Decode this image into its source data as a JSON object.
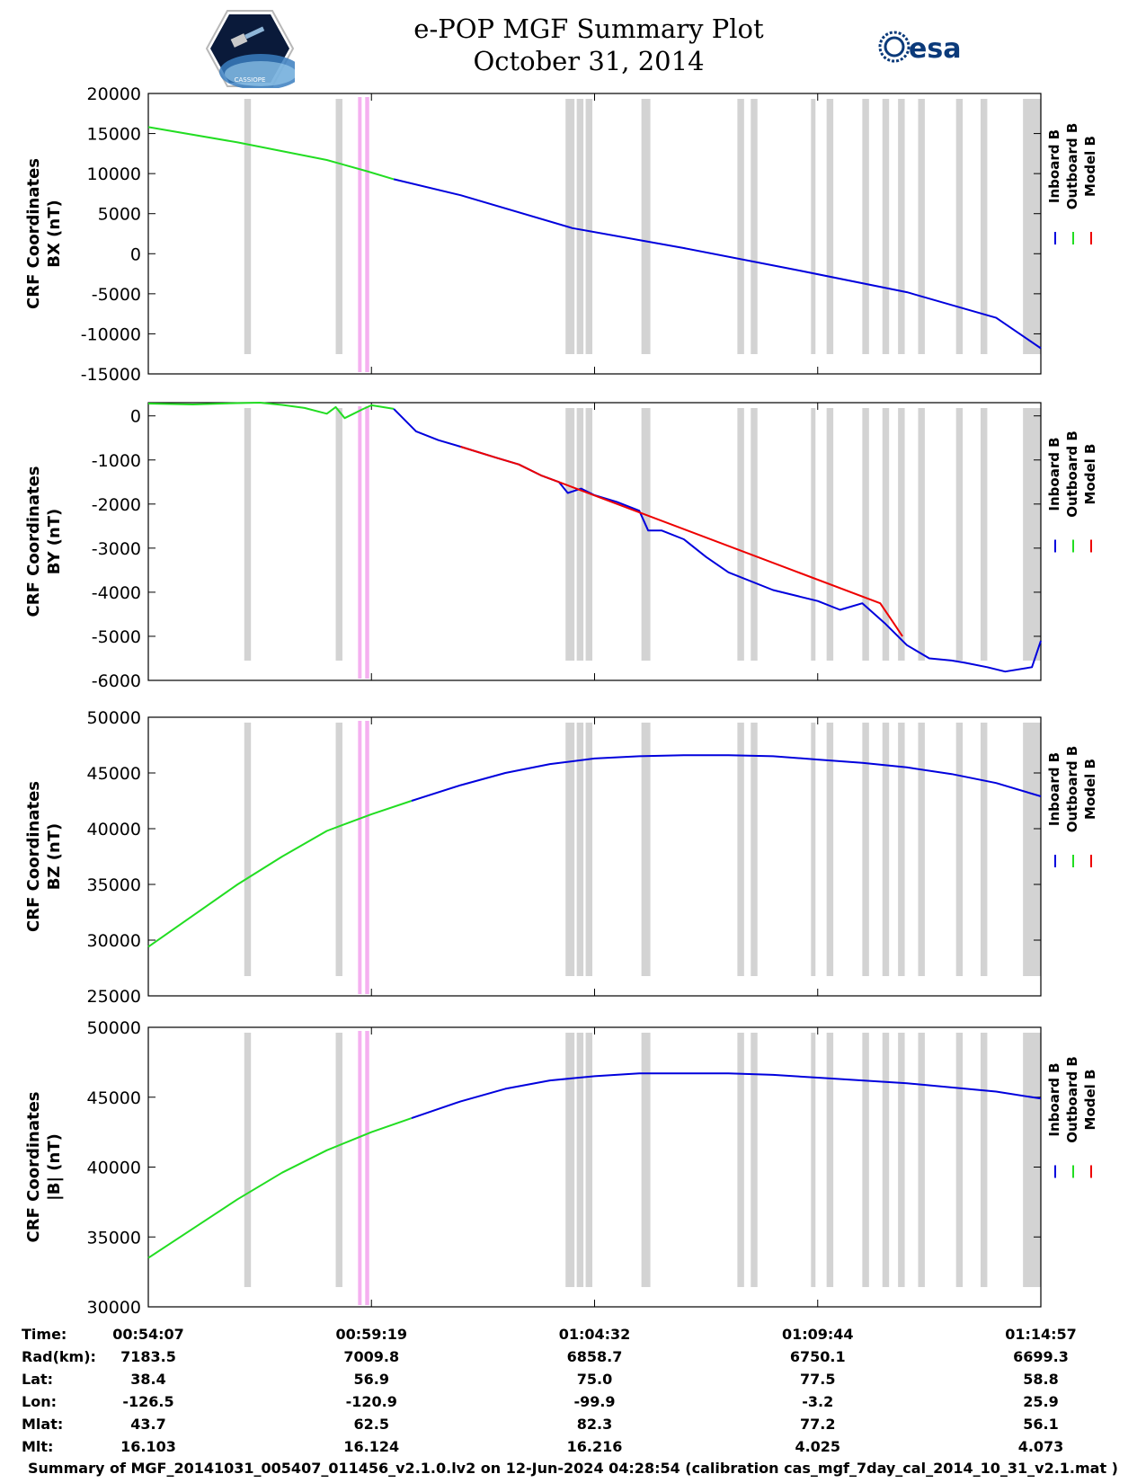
{
  "header": {
    "title": "e-POP MGF Summary Plot",
    "date": "October 31, 2014",
    "logo_left_text": "CASSIOPE",
    "logo_right_text": "esa"
  },
  "colors": {
    "inboard": "#0000dd",
    "outboard": "#22dd22",
    "model": "#ee0000",
    "gap": "#d3d3d3",
    "event": "#f5b0f0"
  },
  "legend": [
    "Inboard B",
    "Outboard B",
    "Model B"
  ],
  "chart_data": [
    {
      "type": "line",
      "ylabel": [
        "CRF Coordinates",
        "BX (nT)"
      ],
      "ylim": [
        -15000,
        20000
      ],
      "yticks": [
        "20000",
        "15000",
        "10000",
        "5000",
        "0",
        "-5000",
        "-10000",
        "-15000"
      ],
      "series": [
        {
          "name": "Outboard B",
          "x": [
            0,
            2.0,
            4.0,
            4.9,
            5.5
          ],
          "values": [
            15800,
            13900,
            11700,
            10300,
            9300
          ]
        },
        {
          "name": "Inboard B",
          "x": [
            5.5,
            7.0,
            9.5,
            12.0,
            14.5,
            17.0,
            19.0,
            20.0
          ],
          "values": [
            9300,
            7300,
            3200,
            700,
            -2000,
            -4800,
            -8000,
            -11800
          ]
        }
      ]
    },
    {
      "type": "line",
      "ylabel": [
        "CRF Coordinates",
        "BY (nT)"
      ],
      "ylim": [
        -6000,
        300
      ],
      "yticks": [
        "0",
        "-1000",
        "-2000",
        "-3000",
        "-4000",
        "-5000",
        "-6000"
      ],
      "series": [
        {
          "name": "Outboard B",
          "x": [
            0,
            1.0,
            2.0,
            2.5,
            3.0,
            3.5,
            4.0,
            4.2,
            4.4,
            4.6,
            4.8,
            5.0,
            5.5
          ],
          "values": [
            280,
            260,
            290,
            300,
            250,
            180,
            50,
            200,
            -50,
            50,
            150,
            240,
            160
          ]
        },
        {
          "name": "Inboard B",
          "x": [
            5.5,
            6.0,
            6.5,
            7.0,
            7.8,
            8.3,
            8.8,
            9.2,
            9.4,
            9.7,
            10.0,
            10.5,
            11.0,
            11.2,
            11.5,
            12.0,
            12.5,
            13.0,
            14.0,
            15.0,
            15.5,
            16.0,
            16.5,
            17.0,
            17.5,
            18.0,
            18.3,
            18.8,
            19.2,
            19.8,
            20.0
          ],
          "values": [
            160,
            -350,
            -550,
            -700,
            -950,
            -1100,
            -1350,
            -1500,
            -1750,
            -1650,
            -1800,
            -1950,
            -2150,
            -2600,
            -2600,
            -2800,
            -3200,
            -3550,
            -3950,
            -4200,
            -4400,
            -4250,
            -4700,
            -5200,
            -5500,
            -5550,
            -5600,
            -5700,
            -5800,
            -5700,
            -5100
          ]
        },
        {
          "name": "Model B",
          "x": [
            7.0,
            7.8,
            8.3,
            8.8,
            9.2,
            16.4,
            16.7,
            16.9
          ],
          "values": [
            -700,
            -950,
            -1100,
            -1350,
            -1500,
            -4250,
            -4700,
            -5000
          ]
        }
      ]
    },
    {
      "type": "line",
      "ylabel": [
        "CRF Coordinates",
        "BZ (nT)"
      ],
      "ylim": [
        25000,
        50000
      ],
      "yticks": [
        "50000",
        "45000",
        "40000",
        "35000",
        "30000",
        "25000"
      ],
      "series": [
        {
          "name": "Outboard B",
          "x": [
            0,
            1.0,
            2.0,
            3.0,
            4.0,
            5.0,
            5.9
          ],
          "values": [
            29400,
            32200,
            35000,
            37500,
            39800,
            41300,
            42500
          ]
        },
        {
          "name": "Inboard B",
          "x": [
            5.9,
            7.0,
            8.0,
            9.0,
            10.0,
            11.0,
            12.0,
            13.0,
            14.0,
            15.0,
            16.0,
            17.0,
            18.0,
            19.0,
            20.0
          ],
          "values": [
            42500,
            43900,
            45000,
            45800,
            46300,
            46500,
            46600,
            46600,
            46500,
            46200,
            45900,
            45500,
            44900,
            44100,
            42900
          ]
        }
      ]
    },
    {
      "type": "line",
      "ylabel": [
        "CRF Coordinates",
        "|B| (nT)"
      ],
      "ylim": [
        30000,
        50000
      ],
      "yticks": [
        "50000",
        "45000",
        "40000",
        "35000",
        "30000"
      ],
      "series": [
        {
          "name": "Outboard B",
          "x": [
            0,
            1.0,
            2.0,
            3.0,
            4.0,
            5.0,
            5.9
          ],
          "values": [
            33500,
            35600,
            37700,
            39600,
            41200,
            42500,
            43500
          ]
        },
        {
          "name": "Inboard B",
          "x": [
            5.9,
            7.0,
            8.0,
            9.0,
            10.0,
            11.0,
            12.0,
            13.0,
            14.0,
            15.0,
            16.0,
            17.0,
            18.0,
            19.0,
            20.0
          ],
          "values": [
            43500,
            44700,
            45600,
            46200,
            46500,
            46700,
            46700,
            46700,
            46600,
            46400,
            46200,
            46000,
            45700,
            45400,
            44900
          ]
        }
      ]
    }
  ],
  "gaps": [
    [
      2.15,
      2.3
    ],
    [
      4.2,
      4.35
    ],
    [
      9.35,
      9.55
    ],
    [
      9.6,
      9.75
    ],
    [
      9.8,
      9.95
    ],
    [
      11.05,
      11.25
    ],
    [
      13.2,
      13.35
    ],
    [
      13.5,
      13.65
    ],
    [
      14.85,
      14.95
    ],
    [
      15.2,
      15.35
    ],
    [
      16.0,
      16.15
    ],
    [
      16.45,
      16.6
    ],
    [
      16.8,
      16.95
    ],
    [
      17.25,
      17.4
    ],
    [
      18.1,
      18.25
    ],
    [
      18.65,
      18.8
    ],
    [
      19.6,
      20.0
    ]
  ],
  "events": [
    [
      4.7,
      4.78
    ],
    [
      4.86,
      4.95
    ]
  ],
  "xticks_pos": [
    0,
    5,
    10,
    15,
    20
  ],
  "info_table": {
    "row_labels": [
      "Time:",
      "Rad(km):",
      "Lat:",
      "Lon:",
      "Mlat:",
      "Mlt:"
    ],
    "columns": [
      [
        "00:54:07",
        "7183.5",
        "38.4",
        "-126.5",
        "43.7",
        "16.103"
      ],
      [
        "00:59:19",
        "7009.8",
        "56.9",
        "-120.9",
        "62.5",
        "16.124"
      ],
      [
        "01:04:32",
        "6858.7",
        "75.0",
        "-99.9",
        "82.3",
        "16.216"
      ],
      [
        "01:09:44",
        "6750.1",
        "77.5",
        "-3.2",
        "77.2",
        "4.025"
      ],
      [
        "01:14:57",
        "6699.3",
        "58.8",
        "25.9",
        "56.1",
        "4.073"
      ]
    ]
  },
  "footer": "Summary of MGF_20141031_005407_011456_v2.1.0.lv2 on 12-Jun-2024 04:28:54 (calibration cas_mgf_7day_cal_2014_10_31_v2.1.mat )"
}
